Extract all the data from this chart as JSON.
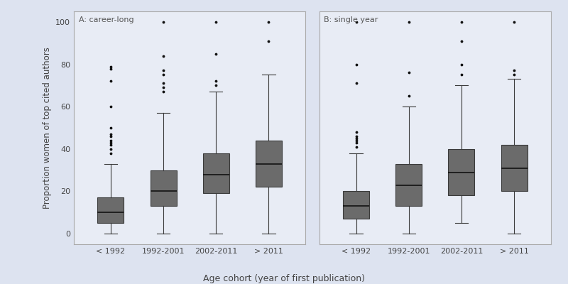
{
  "panel_A_title": "A: career-long",
  "panel_B_title": "B: single year",
  "xlabel": "Age cohort (year of first publication)",
  "ylabel": "Proportion women of top cited authors",
  "categories": [
    "< 1992",
    "1992-2001",
    "2002-2011",
    "> 2011"
  ],
  "ylim": [
    -5,
    105
  ],
  "yticks": [
    0,
    20,
    40,
    60,
    80,
    100
  ],
  "fig_facecolor": "#dde3f0",
  "ax_facecolor": "#e8ecf5",
  "box_facecolor": "#6b6b6b",
  "box_edgecolor": "#3a3a3a",
  "median_color": "#111111",
  "whisker_color": "#3a3a3a",
  "flier_color": "#111111",
  "panel_A": {
    "boxes": [
      {
        "q1": 5,
        "median": 10,
        "q3": 17,
        "whislo": 0,
        "whishi": 33,
        "fliers": [
          38,
          40,
          42,
          43,
          44,
          46,
          47,
          50,
          60,
          72,
          78,
          79
        ]
      },
      {
        "q1": 13,
        "median": 20,
        "q3": 30,
        "whislo": 0,
        "whishi": 57,
        "fliers": [
          67,
          69,
          71,
          75,
          77,
          84,
          100
        ]
      },
      {
        "q1": 19,
        "median": 28,
        "q3": 38,
        "whislo": 0,
        "whishi": 67,
        "fliers": [
          70,
          72,
          85,
          100
        ]
      },
      {
        "q1": 22,
        "median": 33,
        "q3": 44,
        "whislo": 0,
        "whishi": 75,
        "fliers": [
          91,
          100
        ]
      }
    ]
  },
  "panel_B": {
    "boxes": [
      {
        "q1": 7,
        "median": 13,
        "q3": 20,
        "whislo": 0,
        "whishi": 38,
        "fliers": [
          41,
          43,
          44,
          45,
          46,
          48,
          71,
          80,
          100
        ]
      },
      {
        "q1": 13,
        "median": 23,
        "q3": 33,
        "whislo": 0,
        "whishi": 60,
        "fliers": [
          65,
          76,
          100
        ]
      },
      {
        "q1": 18,
        "median": 29,
        "q3": 40,
        "whislo": 5,
        "whishi": 70,
        "fliers": [
          75,
          80,
          91,
          100
        ]
      },
      {
        "q1": 20,
        "median": 31,
        "q3": 42,
        "whislo": 0,
        "whishi": 73,
        "fliers": [
          75,
          77,
          100
        ]
      }
    ]
  }
}
